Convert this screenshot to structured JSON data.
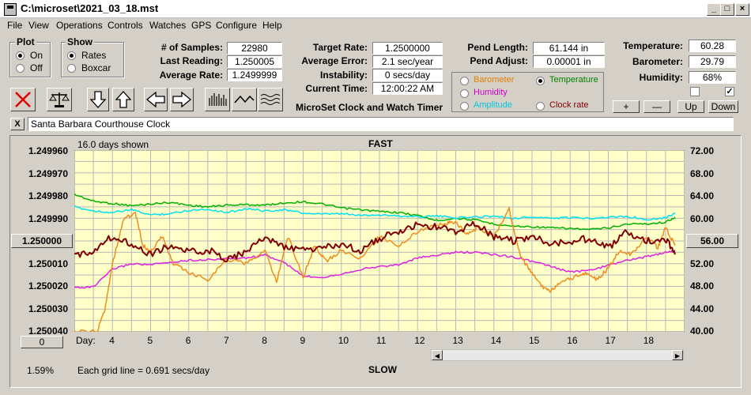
{
  "window": {
    "title": "C:\\microset\\2021_03_18.mst"
  },
  "menu": [
    "File",
    "View",
    "Operations",
    "Controls",
    "Watches",
    "GPS",
    "Configure",
    "Help"
  ],
  "plot_group": {
    "title": "Plot",
    "on": "On",
    "off": "Off",
    "selected": "On"
  },
  "show_group": {
    "title": "Show",
    "rates": "Rates",
    "boxcar": "Boxcar",
    "selected": "Rates"
  },
  "stats": {
    "samples_label": "# of Samples:",
    "samples": "22980",
    "last_label": "Last Reading:",
    "last": "1.250005",
    "avg_label": "Average Rate:",
    "avg": "1.2499999",
    "target_label": "Target Rate:",
    "target": "1.2500000",
    "avgerr_label": "Average Error:",
    "avgerr": "2.1 sec/year",
    "instab_label": "Instability:",
    "instab": "0 secs/day",
    "time_label": "Current Time:",
    "time": "12:00:22 AM",
    "pend_label": "Pend Length:",
    "pend": "61.144 in",
    "adjust_label": "Pend Adjust:",
    "adjust": "0.00001 in",
    "temp_label": "Temperature:",
    "temp": "60.28",
    "baro_label": "Barometer:",
    "baro": "29.79",
    "hum_label": "Humidity:",
    "hum": "68%"
  },
  "app_caption": "MicroSet Clock and Watch Timer",
  "overlay": {
    "barometer": "Barometer",
    "temperature": "Temperature",
    "humidity": "Humidity",
    "amplitude": "Amplitude",
    "clockrate": "Clock rate",
    "selected": "Temperature",
    "colors": {
      "barometer": "#e08000",
      "temperature": "#008000",
      "humidity": "#cc00cc",
      "amplitude": "#00c8d8",
      "clockrate": "#800000"
    }
  },
  "adjust_buttons": {
    "plus": "+",
    "minus": "—",
    "up": "Up",
    "down": "Down"
  },
  "toolbar_icons": [
    "delete-icon",
    "balance-scale-icon",
    "arrow-down-icon",
    "arrow-up-icon",
    "arrow-left-icon",
    "arrow-right-icon",
    "bar-graph-icon",
    "wave-icon",
    "multi-wave-icon"
  ],
  "note": {
    "close": "X",
    "text": "Santa Barbara Courthouse Clock"
  },
  "chart_header": {
    "days_shown": "16.0 days shown",
    "fast": "FAST",
    "slow": "SLOW",
    "grid_note": "Each grid line = 0.691 secs/day",
    "percent": "1.59%",
    "left_button": "1.250000",
    "right_button": "56.00",
    "bottom_button": "0",
    "day_label": "Day:"
  },
  "chart_data": {
    "type": "line",
    "x_label": "Day",
    "x_ticks": [
      4,
      5,
      6,
      7,
      8,
      9,
      10,
      11,
      12,
      13,
      14,
      15,
      16,
      17,
      18
    ],
    "xlim": [
      3.0,
      19.0
    ],
    "y_left_ticks": [
      "1.249960",
      "1.249970",
      "1.249980",
      "1.249990",
      "1.250000",
      "1.250010",
      "1.250020",
      "1.250030",
      "1.250040"
    ],
    "y_left_range": [
      1.24996,
      1.25004
    ],
    "y_left_inverted": true,
    "y_right_ticks": [
      "72.00",
      "68.00",
      "64.00",
      "60.00",
      "56.00",
      "52.00",
      "48.00",
      "44.00",
      "40.00"
    ],
    "y_right_range": [
      40,
      72
    ],
    "grid": true,
    "series": [
      {
        "name": "Temperature",
        "color": "#00b000",
        "axis": "right",
        "points": [
          [
            3.0,
            64.2
          ],
          [
            3.5,
            63.0
          ],
          [
            4.0,
            62.6
          ],
          [
            4.5,
            62.2
          ],
          [
            5.0,
            62.5
          ],
          [
            5.5,
            62.8
          ],
          [
            6.0,
            62.3
          ],
          [
            6.5,
            62.0
          ],
          [
            7.0,
            62.3
          ],
          [
            7.5,
            62.4
          ],
          [
            8.0,
            62.3
          ],
          [
            8.5,
            62.7
          ],
          [
            9.0,
            62.9
          ],
          [
            9.5,
            62.5
          ],
          [
            10.0,
            61.8
          ],
          [
            10.5,
            61.5
          ],
          [
            11.0,
            61.2
          ],
          [
            11.5,
            61.0
          ],
          [
            12.0,
            60.5
          ],
          [
            12.5,
            59.6
          ],
          [
            13.0,
            60.0
          ],
          [
            13.5,
            59.7
          ],
          [
            14.0,
            59.0
          ],
          [
            14.5,
            58.6
          ],
          [
            15.0,
            58.5
          ],
          [
            15.5,
            58.3
          ],
          [
            16.0,
            58.2
          ],
          [
            16.5,
            58.0
          ],
          [
            17.0,
            58.3
          ],
          [
            17.5,
            59.0
          ],
          [
            18.0,
            59.0
          ],
          [
            18.5,
            59.3
          ],
          [
            18.75,
            60.2
          ]
        ]
      },
      {
        "name": "Amplitude",
        "color": "#00e0f0",
        "axis": "right",
        "points": [
          [
            3.0,
            62.0
          ],
          [
            3.5,
            61.3
          ],
          [
            4.0,
            61.0
          ],
          [
            4.5,
            61.5
          ],
          [
            5.0,
            60.6
          ],
          [
            5.5,
            60.8
          ],
          [
            6.0,
            61.4
          ],
          [
            6.5,
            61.6
          ],
          [
            7.0,
            61.0
          ],
          [
            7.5,
            61.7
          ],
          [
            8.0,
            61.3
          ],
          [
            8.5,
            61.5
          ],
          [
            9.0,
            60.9
          ],
          [
            9.5,
            60.7
          ],
          [
            10.0,
            60.8
          ],
          [
            10.5,
            60.5
          ],
          [
            11.0,
            60.6
          ],
          [
            11.5,
            60.4
          ],
          [
            12.0,
            60.3
          ],
          [
            12.5,
            60.4
          ],
          [
            13.0,
            60.1
          ],
          [
            13.5,
            60.2
          ],
          [
            14.0,
            60.4
          ],
          [
            14.5,
            60.0
          ],
          [
            15.0,
            60.2
          ],
          [
            15.5,
            60.0
          ],
          [
            16.0,
            60.1
          ],
          [
            16.5,
            60.0
          ],
          [
            17.0,
            60.2
          ],
          [
            17.5,
            60.3
          ],
          [
            18.0,
            59.8
          ],
          [
            18.5,
            60.1
          ],
          [
            18.75,
            60.9
          ]
        ]
      },
      {
        "name": "Humidity",
        "color": "#e020e0",
        "axis": "right",
        "points": [
          [
            3.0,
            47.8
          ],
          [
            3.5,
            47.9
          ],
          [
            4.0,
            51.0
          ],
          [
            4.5,
            52.0
          ],
          [
            5.0,
            51.8
          ],
          [
            5.5,
            52.2
          ],
          [
            6.0,
            52.6
          ],
          [
            6.5,
            52.7
          ],
          [
            7.0,
            52.9
          ],
          [
            7.5,
            53.0
          ],
          [
            8.0,
            53.5
          ],
          [
            8.5,
            52.2
          ],
          [
            9.0,
            49.8
          ],
          [
            9.5,
            49.6
          ],
          [
            10.0,
            50.2
          ],
          [
            10.5,
            51.0
          ],
          [
            11.0,
            51.5
          ],
          [
            11.5,
            51.8
          ],
          [
            12.0,
            53.0
          ],
          [
            12.5,
            53.5
          ],
          [
            13.0,
            54.0
          ],
          [
            13.5,
            54.0
          ],
          [
            14.0,
            53.6
          ],
          [
            14.5,
            53.2
          ],
          [
            15.0,
            52.4
          ],
          [
            15.5,
            51.5
          ],
          [
            16.0,
            50.5
          ],
          [
            16.5,
            50.8
          ],
          [
            17.0,
            51.7
          ],
          [
            17.5,
            52.6
          ],
          [
            18.0,
            53.2
          ],
          [
            18.5,
            54.0
          ],
          [
            18.75,
            54.4
          ]
        ]
      },
      {
        "name": "Barometer",
        "color": "#f08c1e",
        "axis": "left",
        "points": [
          [
            3.0,
            1.25004
          ],
          [
            3.6,
            1.25004
          ],
          [
            3.8,
            1.25003
          ],
          [
            4.0,
            1.25001
          ],
          [
            4.3,
            1.24999
          ],
          [
            4.6,
            1.249988
          ],
          [
            4.8,
            1.250002
          ],
          [
            5.0,
            1.250005
          ],
          [
            5.3,
            1.249998
          ],
          [
            5.6,
            1.25001
          ],
          [
            6.0,
            1.250014
          ],
          [
            6.5,
            1.250017
          ],
          [
            7.0,
            1.250008
          ],
          [
            7.5,
            1.25001
          ],
          [
            8.0,
            1.250004
          ],
          [
            8.3,
            1.250018
          ],
          [
            8.6,
            1.249998
          ],
          [
            9.0,
            1.250016
          ],
          [
            9.3,
            1.250002
          ],
          [
            9.6,
            1.250009
          ],
          [
            10.0,
            1.250004
          ],
          [
            10.5,
            1.250008
          ],
          [
            11.0,
            1.249998
          ],
          [
            11.5,
            1.250002
          ],
          [
            12.0,
            1.249996
          ],
          [
            12.5,
            1.249993
          ],
          [
            12.8,
            1.249992
          ],
          [
            13.0,
            1.249992
          ],
          [
            13.3,
            1.249997
          ],
          [
            13.6,
            1.249994
          ],
          [
            14.0,
            1.249998
          ],
          [
            14.4,
            1.249986
          ],
          [
            14.7,
            1.250007
          ],
          [
            15.0,
            1.250014
          ],
          [
            15.3,
            1.250021
          ],
          [
            15.5,
            1.250022
          ],
          [
            15.8,
            1.250018
          ],
          [
            16.1,
            1.250016
          ],
          [
            16.4,
            1.250014
          ],
          [
            16.7,
            1.250017
          ],
          [
            17.0,
            1.250012
          ],
          [
            17.3,
            1.250004
          ],
          [
            17.6,
            1.250006
          ],
          [
            18.0,
            1.249998
          ],
          [
            18.3,
            1.250003
          ],
          [
            18.5,
            1.249994
          ],
          [
            18.75,
            1.250002
          ]
        ]
      },
      {
        "name": "Clock rate",
        "color": "#800000",
        "axis": "left",
        "points": [
          [
            3.0,
            1.250007
          ],
          [
            3.5,
            1.250004
          ],
          [
            4.0,
            1.249998
          ],
          [
            4.5,
            1.250001
          ],
          [
            5.0,
            1.250006
          ],
          [
            5.5,
            1.250002
          ],
          [
            6.0,
            1.250005
          ],
          [
            6.5,
            1.250004
          ],
          [
            7.0,
            1.250008
          ],
          [
            7.5,
            1.250005
          ],
          [
            8.0,
            1.249998
          ],
          [
            8.5,
            1.250003
          ],
          [
            9.0,
            1.250004
          ],
          [
            9.5,
            1.250003
          ],
          [
            10.0,
            1.250002
          ],
          [
            10.5,
            1.250004
          ],
          [
            11.0,
            1.249999
          ],
          [
            11.5,
            1.249996
          ],
          [
            12.0,
            1.249993
          ],
          [
            12.5,
            1.249994
          ],
          [
            13.0,
            1.249996
          ],
          [
            13.5,
            1.249992
          ],
          [
            14.0,
            1.249998
          ],
          [
            14.5,
            1.25
          ],
          [
            15.0,
            1.249998
          ],
          [
            15.5,
            1.250001
          ],
          [
            16.0,
            1.25
          ],
          [
            16.5,
            1.249999
          ],
          [
            17.0,
            1.250003
          ],
          [
            17.5,
            1.249996
          ],
          [
            18.0,
            1.25
          ],
          [
            18.5,
            1.249999
          ],
          [
            18.75,
            1.250006
          ]
        ]
      }
    ]
  }
}
